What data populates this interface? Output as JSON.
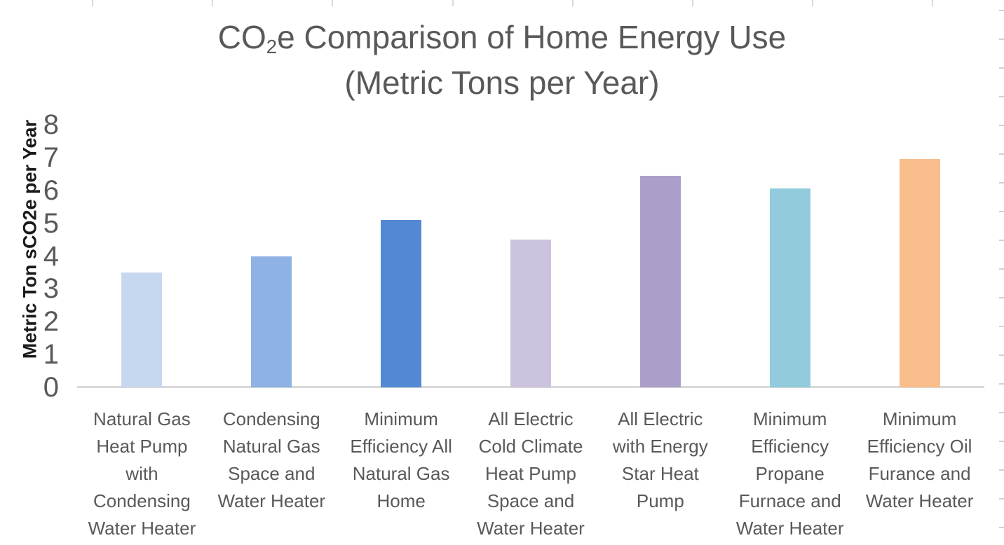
{
  "title": {
    "prefix": "CO",
    "subscript": "2",
    "suffix": "e Comparison of Home Energy Use",
    "line2": "(Metric Tons per Year)"
  },
  "y_axis": {
    "title": "Metric Ton sCO2e per Year",
    "tick_values": [
      8,
      7,
      6,
      5,
      4,
      3,
      2,
      1,
      0
    ],
    "min": 0,
    "max": 8
  },
  "chart_data": {
    "type": "bar",
    "title": "CO2e Comparison of Home Energy Use (Metric Tons per Year)",
    "xlabel": "",
    "ylabel": "Metric Ton sCO2e per Year",
    "ylim": [
      0,
      8
    ],
    "grid": false,
    "legend": false,
    "categories": [
      "Natural Gas Heat Pump with Condensing Water Heater",
      "Condensing Natural Gas Space and Water Heater",
      "Minimum Efficiency All Natural Gas Home",
      "All Electric Cold Climate Heat Pump Space and Water Heater",
      "All Electric with Energy Star Heat Pump",
      "Minimum Efficiency Propane Furnace and Water Heater",
      "Minimum Efficiency Oil Furance and Water Heater"
    ],
    "category_label_lines": [
      [
        "Natural Gas",
        "Heat Pump",
        "with",
        "Condensing",
        "Water Heater"
      ],
      [
        "Condensing",
        "Natural Gas",
        "Space and",
        "Water Heater"
      ],
      [
        "Minimum",
        "Efficiency All",
        "Natural Gas",
        "Home"
      ],
      [
        "All Electric",
        "Cold Climate",
        "Heat Pump",
        "Space and",
        "Water Heater"
      ],
      [
        "All Electric",
        "with Energy",
        "Star Heat",
        "Pump"
      ],
      [
        "Minimum",
        "Efficiency",
        "Propane",
        "Furnace and",
        "Water Heater"
      ],
      [
        "Minimum",
        "Efficiency Oil",
        "Furance and",
        "Water Heater"
      ]
    ],
    "values": [
      3.5,
      4.0,
      5.1,
      4.5,
      6.45,
      6.05,
      6.95
    ],
    "bar_colors": [
      "#C6D8F0",
      "#8DB2E3",
      "#5389D4",
      "#CBC2DD",
      "#AB9FC9",
      "#92CBDC",
      "#F9BE8C"
    ]
  },
  "colors": {
    "title_text": "#595959",
    "axis_line": "#D9D9D9",
    "tick_label_text": "#595959",
    "category_label_text": "#595959",
    "y_axis_title_text": "#1A1A1A",
    "background": "#FFFFFF"
  }
}
